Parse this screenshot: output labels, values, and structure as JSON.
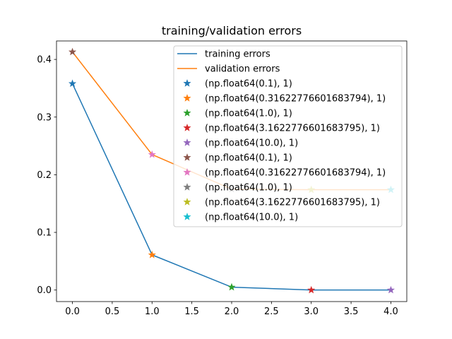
{
  "chart_data": {
    "type": "line",
    "title": "training/validation errors",
    "xlabel": "",
    "ylabel": "",
    "xlim": [
      -0.2,
      4.2
    ],
    "ylim": [
      -0.02,
      0.432
    ],
    "x_ticks": [
      0.0,
      0.5,
      1.0,
      1.5,
      2.0,
      2.5,
      3.0,
      3.5,
      4.0
    ],
    "x_tick_labels": [
      "0.0",
      "0.5",
      "1.0",
      "1.5",
      "2.0",
      "2.5",
      "3.0",
      "3.5",
      "4.0"
    ],
    "y_ticks": [
      0.0,
      0.1,
      0.2,
      0.3,
      0.4
    ],
    "y_tick_labels": [
      "0.0",
      "0.1",
      "0.2",
      "0.3",
      "0.4"
    ],
    "legend_position": "top-right",
    "grid": false,
    "series": [
      {
        "name": "training errors",
        "color": "#1f77b4",
        "x": [
          0,
          1,
          2,
          3,
          4
        ],
        "y": [
          0.358,
          0.061,
          0.005,
          0.0,
          0.0
        ]
      },
      {
        "name": "validation errors",
        "color": "#ff7f0e",
        "x": [
          0,
          1,
          2,
          3,
          4
        ],
        "y": [
          0.413,
          0.235,
          0.175,
          0.174,
          0.174
        ]
      }
    ],
    "markers": [
      {
        "name": "(np.float64(0.1), 1)",
        "color": "#1f77b4",
        "x": 0,
        "y": 0.358
      },
      {
        "name": "(np.float64(0.31622776601683794), 1)",
        "color": "#ff7f0e",
        "x": 1,
        "y": 0.061
      },
      {
        "name": "(np.float64(1.0), 1)",
        "color": "#2ca02c",
        "x": 2,
        "y": 0.005
      },
      {
        "name": "(np.float64(3.1622776601683795), 1)",
        "color": "#d62728",
        "x": 3,
        "y": 0.0
      },
      {
        "name": "(np.float64(10.0), 1)",
        "color": "#9467bd",
        "x": 4,
        "y": 0.0
      },
      {
        "name": "(np.float64(0.1), 1)",
        "color": "#8c564b",
        "x": 0,
        "y": 0.413
      },
      {
        "name": "(np.float64(0.31622776601683794), 1)",
        "color": "#e377c2",
        "x": 1,
        "y": 0.235
      },
      {
        "name": "(np.float64(1.0), 1)",
        "color": "#7f7f7f",
        "x": 2,
        "y": 0.175
      },
      {
        "name": "(np.float64(3.1622776601683795), 1)",
        "color": "#bcbd22",
        "x": 3,
        "y": 0.174
      },
      {
        "name": "(np.float64(10.0), 1)",
        "color": "#17becf",
        "x": 4,
        "y": 0.174
      }
    ]
  }
}
